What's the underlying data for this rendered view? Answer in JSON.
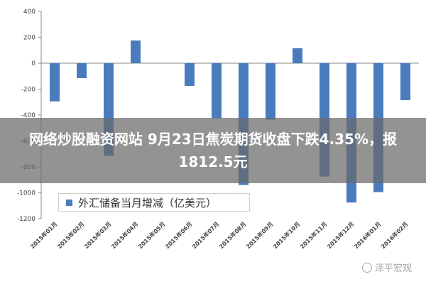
{
  "chart_data": {
    "type": "bar",
    "categories": [
      "2015年01月",
      "2015年02月",
      "2015年03月",
      "2015年04月",
      "2015年05月",
      "2015年06月",
      "2015年07月",
      "2015年08月",
      "2015年09月",
      "2015年10月",
      "2015年11月",
      "2015年12月",
      "2016年01月",
      "2016年02月"
    ],
    "series": [
      {
        "name": "外汇储备当月增减（亿美元）",
        "values": [
          -295,
          -115,
          -715,
          175,
          0,
          -175,
          -425,
          -940,
          -435,
          115,
          -875,
          -1075,
          -995,
          -285
        ],
        "color": "#4a7bbd"
      }
    ],
    "ylim": [
      -1200,
      400
    ],
    "yticks": [
      400,
      200,
      0,
      -200,
      -400,
      -600,
      -800,
      -1000,
      -1200
    ],
    "grid": false,
    "legend_position": "bottom-left"
  },
  "banner": {
    "text": "网络炒股融资网站 9月23日焦炭期货收盘下跌4.35%，报1812.5元"
  },
  "watermark": {
    "text": "泽平宏观"
  }
}
